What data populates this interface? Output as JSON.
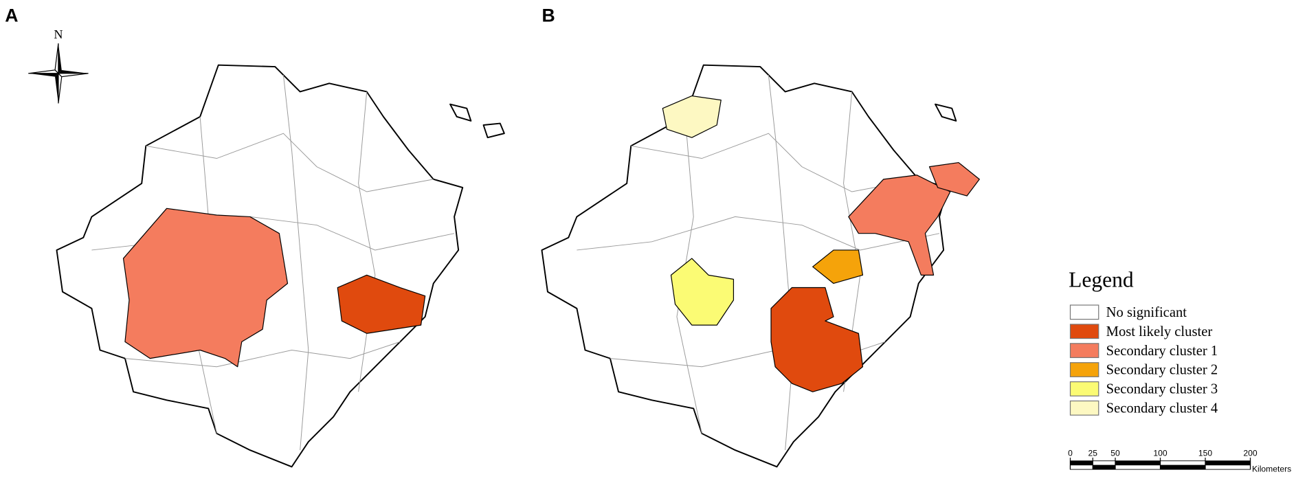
{
  "panels": [
    {
      "label": "A"
    },
    {
      "label": "B"
    }
  ],
  "north": "N",
  "legend": {
    "title": "Legend",
    "items": [
      {
        "name": "No significant",
        "color": "#ffffff"
      },
      {
        "name": "Most likely cluster",
        "color": "#e04a0e"
      },
      {
        "name": "Secondary cluster 1",
        "color": "#f47c5e"
      },
      {
        "name": "Secondary cluster 2",
        "color": "#f5a30a"
      },
      {
        "name": "Secondary cluster 3",
        "color": "#fbfb74"
      },
      {
        "name": "Secondary cluster 4",
        "color": "#fdf8c2"
      }
    ]
  },
  "scale_bar": {
    "ticks": [
      0,
      25,
      50,
      100,
      150,
      200
    ],
    "unit": "Kilometers"
  }
}
